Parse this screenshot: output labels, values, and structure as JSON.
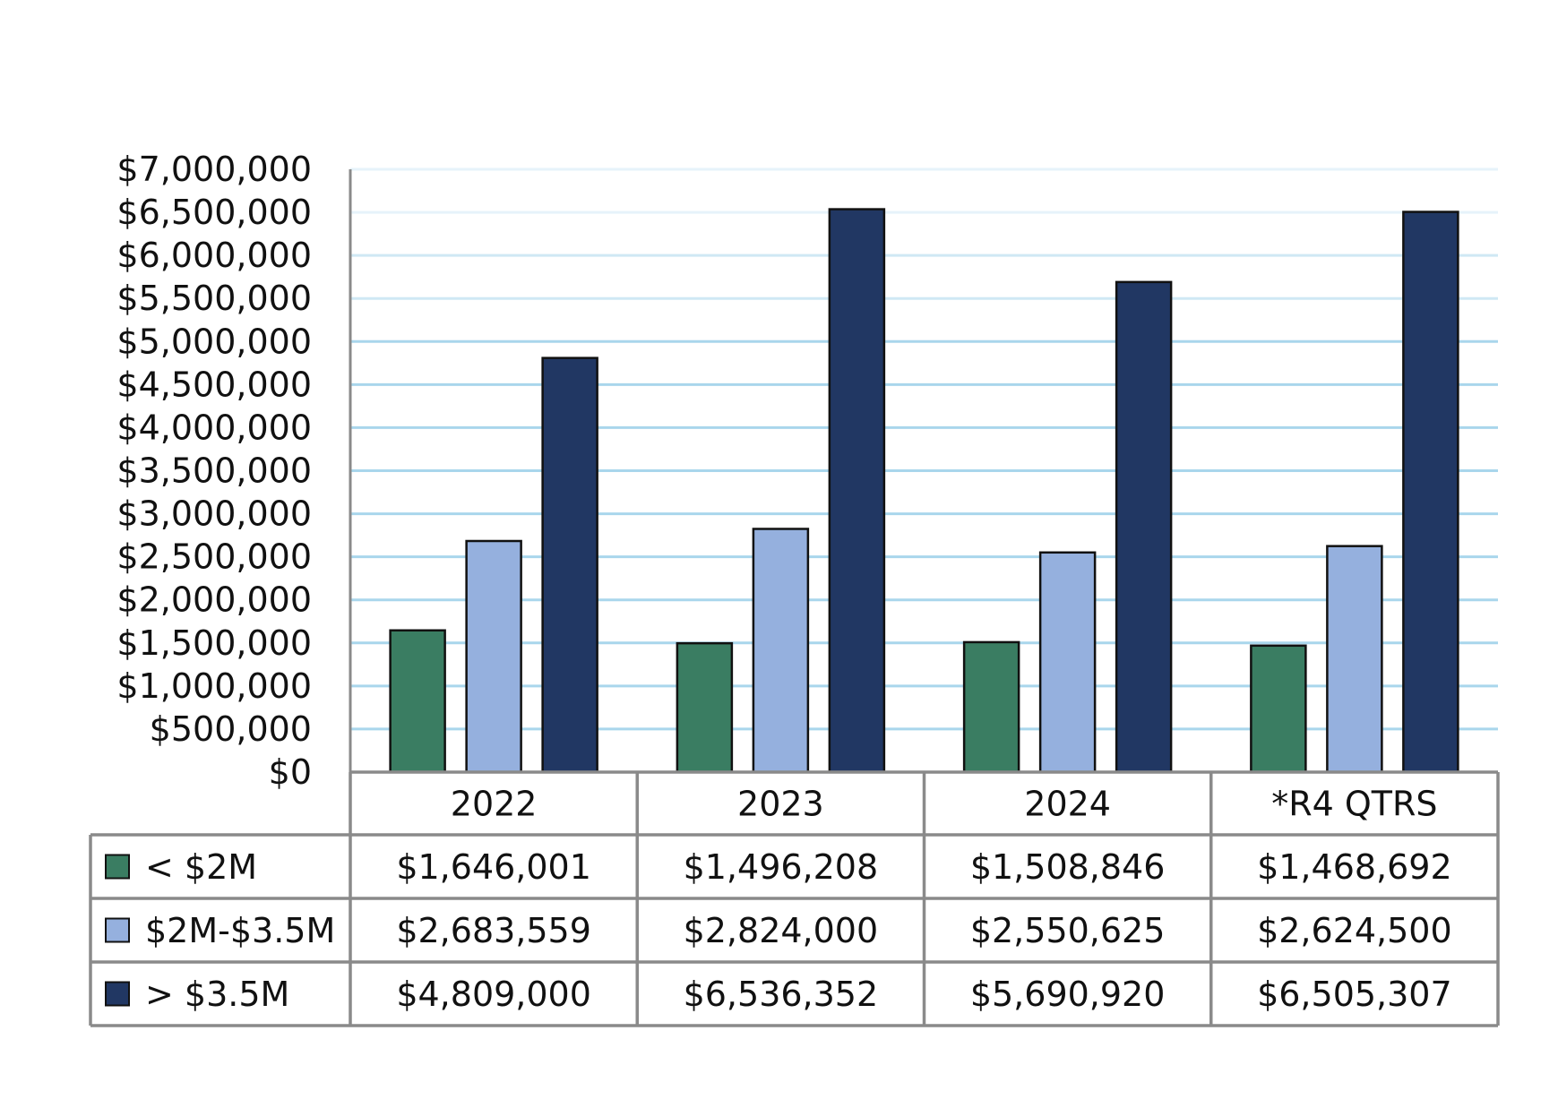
{
  "chart_data": {
    "type": "bar",
    "title": "",
    "xlabel": "",
    "ylabel": "",
    "ylim": [
      0,
      7000000
    ],
    "y_ticks": [
      0,
      500000,
      1000000,
      1500000,
      2000000,
      2500000,
      3000000,
      3500000,
      4000000,
      4500000,
      5000000,
      5500000,
      6000000,
      6500000,
      7000000
    ],
    "y_tick_labels": [
      "$0",
      "$500,000",
      "$1,000,000",
      "$1,500,000",
      "$2,000,000",
      "$2,500,000",
      "$3,000,000",
      "$3,500,000",
      "$4,000,000",
      "$4,500,000",
      "$5,000,000",
      "$5,500,000",
      "$6,000,000",
      "$6,500,000",
      "$7,000,000"
    ],
    "categories": [
      "2022",
      "2023",
      "2024",
      "*R4 QTRS"
    ],
    "grid": true,
    "legend": "data-table",
    "series": [
      {
        "name": "< $2M",
        "color": "#3a7d62",
        "values": [
          1646001,
          1496208,
          1508846,
          1468692
        ],
        "labels": [
          "$1,646,001",
          "$1,496,208",
          "$1,508,846",
          "$1,468,692"
        ]
      },
      {
        "name": "$2M-$3.5M",
        "color": "#95b0de",
        "values": [
          2683559,
          2824000,
          2550625,
          2624500
        ],
        "labels": [
          "$2,683,559",
          "$2,824,000",
          "$2,550,625",
          "$2,624,500"
        ]
      },
      {
        "name": "> $3.5M",
        "color": "#213763",
        "values": [
          4809000,
          6536352,
          5690920,
          6505307
        ],
        "labels": [
          "$4,809,000",
          "$6,536,352",
          "$5,690,920",
          "$6,505,307"
        ]
      }
    ]
  }
}
